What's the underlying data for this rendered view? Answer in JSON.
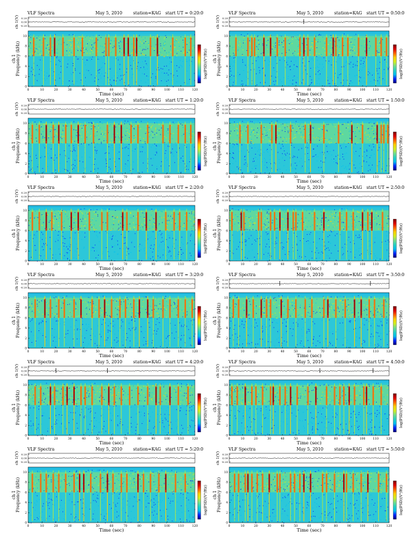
{
  "panel_header": {
    "label": "VLF Spectra",
    "date": "May 5, 2010",
    "station": "station=KAG",
    "start_prefix": "start UT ="
  },
  "axes": {
    "top_ylabel": "ch 1(V)",
    "top_ticks": [
      "0.20",
      "0.00",
      "-0.20"
    ],
    "spec_ylabel_line1": "ch 1",
    "spec_ylabel_line2": "Frequency (kHz)",
    "freq_ticks": [
      "0",
      "2",
      "4",
      "6",
      "8",
      "10"
    ],
    "xlabel": "Time (sec)",
    "x_ticks": [
      "0",
      "10",
      "20",
      "30",
      "40",
      "50",
      "60",
      "70",
      "80",
      "90",
      "100",
      "110",
      "120"
    ],
    "colorbar_label": "log(PSD)(V²/Hz)",
    "colorbar_ticks": [
      "",
      "",
      "",
      ""
    ]
  },
  "colors": {
    "background": "#2cc7d9",
    "palette": [
      "#00007a",
      "#0024ff",
      "#00bff0",
      "#27d3c4",
      "#76e08a",
      "#d4f020",
      "#ffd000",
      "#ff6000",
      "#dd0000",
      "#7a0000"
    ]
  },
  "chart_data": [
    {
      "type": "heatmap",
      "start_ut": "0:20:0",
      "xlim": [
        0,
        120
      ],
      "ylim": [
        0,
        11
      ],
      "waveform_ylim": [
        -0.2,
        0.2
      ],
      "spike_times": [],
      "vertical_bursts": [
        4,
        11,
        16,
        19,
        25,
        33,
        39,
        49,
        56,
        58,
        63,
        69,
        72,
        76,
        78,
        88,
        93,
        104,
        113,
        117
      ],
      "strong_bursts": [
        19,
        69,
        72,
        78,
        93
      ],
      "band_khz": [
        6,
        10
      ]
    },
    {
      "type": "heatmap",
      "start_ut": "0:50:0",
      "xlim": [
        0,
        120
      ],
      "ylim": [
        0,
        11
      ],
      "waveform_ylim": [
        -0.2,
        0.2
      ],
      "spike_times": [
        56
      ],
      "vertical_bursts": [
        5,
        14,
        17,
        19,
        26,
        31,
        36,
        42,
        53,
        56,
        59,
        64,
        73,
        78,
        80,
        85,
        89,
        97,
        103,
        110,
        114,
        118
      ],
      "strong_bursts": [
        26,
        31,
        56,
        78,
        103
      ],
      "band_khz": [
        6,
        10
      ]
    },
    {
      "type": "heatmap",
      "start_ut": "1:20:0",
      "xlim": [
        0,
        120
      ],
      "ylim": [
        0,
        11
      ],
      "waveform_ylim": [
        -0.2,
        0.2
      ],
      "spike_times": [],
      "vertical_bursts": [
        3,
        8,
        13,
        18,
        22,
        27,
        31,
        36,
        41,
        47,
        57,
        62,
        67,
        74,
        79,
        86,
        97,
        102,
        108,
        113,
        117
      ],
      "strong_bursts": [
        13,
        22,
        36,
        62,
        67
      ],
      "band_khz": [
        6,
        10
      ]
    },
    {
      "type": "heatmap",
      "start_ut": "1:50:0",
      "xlim": [
        0,
        120
      ],
      "ylim": [
        0,
        11
      ],
      "waveform_ylim": [
        -0.2,
        0.2
      ],
      "spike_times": [],
      "vertical_bursts": [
        8,
        14,
        24,
        32,
        35,
        46,
        57,
        61,
        71,
        82,
        92,
        100,
        111,
        114,
        116,
        119
      ],
      "strong_bursts": [
        35,
        61,
        92,
        111
      ],
      "band_khz": [
        6,
        10
      ]
    },
    {
      "type": "heatmap",
      "start_ut": "2:20:0",
      "xlim": [
        0,
        120
      ],
      "ylim": [
        0,
        11
      ],
      "waveform_ylim": [
        -0.2,
        0.2
      ],
      "spike_times": [],
      "vertical_bursts": [
        3,
        8,
        13,
        17,
        24,
        31,
        36,
        44,
        53,
        57,
        68,
        71,
        79,
        85,
        92,
        99,
        105,
        109,
        114
      ],
      "strong_bursts": [
        13,
        31,
        36,
        68,
        85,
        92
      ],
      "band_khz": [
        6,
        10
      ]
    },
    {
      "type": "heatmap",
      "start_ut": "2:50:0",
      "xlim": [
        0,
        120
      ],
      "ylim": [
        0,
        11
      ],
      "waveform_ylim": [
        -0.2,
        0.2
      ],
      "spike_times": [],
      "vertical_bursts": [
        2,
        9,
        11,
        22,
        24,
        31,
        34,
        38,
        44,
        48,
        50,
        55,
        64,
        71,
        83,
        88,
        93,
        100,
        104,
        107,
        115
      ],
      "strong_bursts": [
        9,
        38,
        44,
        71,
        100,
        107
      ],
      "band_khz": [
        6,
        10
      ]
    },
    {
      "type": "heatmap",
      "start_ut": "3:20:0",
      "xlim": [
        0,
        120
      ],
      "ylim": [
        0,
        11
      ],
      "waveform_ylim": [
        -0.2,
        0.2
      ],
      "spike_times": [],
      "vertical_bursts": [
        5,
        12,
        16,
        22,
        26,
        33,
        38,
        46,
        51,
        55,
        60,
        66,
        70,
        76,
        80,
        86,
        90,
        97,
        102,
        108,
        113,
        118
      ],
      "strong_bursts": [
        12,
        38,
        55,
        80,
        86
      ],
      "band_khz": [
        6,
        10
      ]
    },
    {
      "type": "heatmap",
      "start_ut": "3:50:0",
      "xlim": [
        0,
        120
      ],
      "ylim": [
        0,
        11
      ],
      "waveform_ylim": [
        -0.2,
        0.2
      ],
      "spike_times": [
        38,
        106
      ],
      "vertical_bursts": [
        3,
        7,
        13,
        18,
        24,
        28,
        31,
        39,
        44,
        50,
        57,
        62,
        71,
        74,
        80,
        87,
        94,
        99,
        105,
        109,
        116
      ],
      "strong_bursts": [
        13,
        24,
        39,
        74,
        94,
        99
      ],
      "band_khz": [
        6,
        10
      ]
    },
    {
      "type": "heatmap",
      "start_ut": "4:20:0",
      "xlim": [
        0,
        120
      ],
      "ylim": [
        0,
        11
      ],
      "waveform_ylim": [
        -0.2,
        0.2
      ],
      "spike_times": [
        20,
        57
      ],
      "vertical_bursts": [
        5,
        9,
        16,
        19,
        25,
        28,
        33,
        38,
        41,
        46,
        53,
        58,
        62,
        67,
        73,
        79,
        86,
        92,
        95,
        102,
        108,
        115
      ],
      "strong_bursts": [
        16,
        28,
        33,
        58,
        92,
        102
      ],
      "band_khz": [
        6,
        10
      ]
    },
    {
      "type": "heatmap",
      "start_ut": "4:50:0",
      "xlim": [
        0,
        120
      ],
      "ylim": [
        0,
        11
      ],
      "waveform_ylim": [
        -0.2,
        0.2
      ],
      "spike_times": [
        68,
        108
      ],
      "vertical_bursts": [
        2,
        6,
        12,
        17,
        20,
        25,
        31,
        33,
        38,
        42,
        46,
        51,
        59,
        65,
        73,
        79,
        83,
        86,
        90,
        94,
        101,
        103,
        108,
        114
      ],
      "strong_bursts": [
        12,
        33,
        46,
        65,
        90,
        103
      ],
      "band_khz": [
        6,
        10
      ]
    },
    {
      "type": "heatmap",
      "start_ut": "5:20:0",
      "xlim": [
        0,
        120
      ],
      "ylim": [
        0,
        11
      ],
      "waveform_ylim": [
        -0.2,
        0.2
      ],
      "spike_times": [],
      "vertical_bursts": [
        3,
        9,
        13,
        18,
        22,
        27,
        33,
        37,
        40,
        45,
        52,
        57,
        61,
        67,
        71,
        79,
        83,
        88,
        94,
        99,
        106,
        113
      ],
      "strong_bursts": [
        37,
        40,
        57,
        79,
        99
      ],
      "band_khz": [
        6,
        10
      ]
    },
    {
      "type": "heatmap",
      "start_ut": "5:50:0",
      "xlim": [
        0,
        120
      ],
      "ylim": [
        0,
        11
      ],
      "waveform_ylim": [
        -0.2,
        0.2
      ],
      "spike_times": [],
      "vertical_bursts": [
        4,
        7,
        12,
        14,
        17,
        21,
        25,
        30,
        36,
        38,
        46,
        49,
        53,
        56,
        61,
        70,
        73,
        79,
        86,
        88,
        93,
        99,
        104,
        112,
        118
      ],
      "strong_bursts": [
        14,
        30,
        56,
        61,
        86,
        104
      ],
      "band_khz": [
        6,
        10
      ]
    }
  ]
}
